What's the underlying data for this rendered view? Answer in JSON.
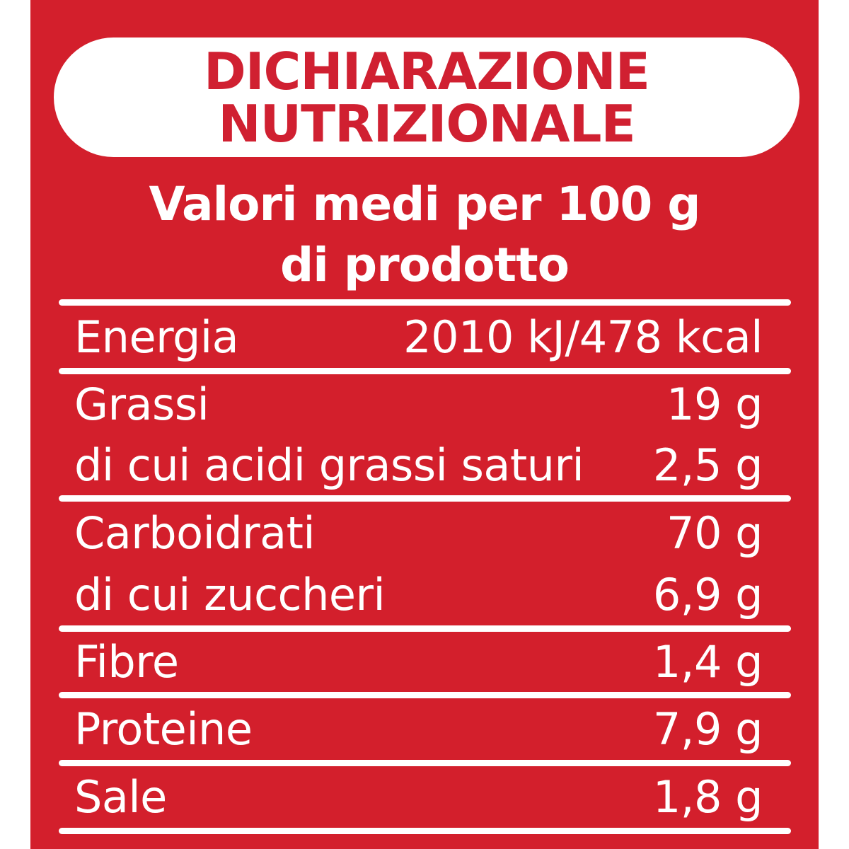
{
  "header": {
    "title_line1": "DICHIARAZIONE",
    "title_line2": "NUTRIZIONALE"
  },
  "subtitle": {
    "line1": "Valori medi per 100 g",
    "line2": "di prodotto"
  },
  "table": {
    "rows": [
      {
        "label": "Energia",
        "value": "2010 kJ/478 kcal"
      },
      {
        "label": "Grassi",
        "value": "19 g"
      },
      {
        "label": "di cui acidi grassi saturi",
        "value": "2,5 g"
      },
      {
        "label": "Carboidrati",
        "value": "70 g"
      },
      {
        "label": "di cui zuccheri",
        "value": "6,9 g"
      },
      {
        "label": "Fibre",
        "value": "1,4 g"
      },
      {
        "label": "Proteine",
        "value": "7,9 g"
      },
      {
        "label": "Sale",
        "value": "1,8 g"
      }
    ]
  },
  "colors": {
    "background_red": "#d31f2c",
    "title_red": "#d02031",
    "text_white": "#ffffff"
  }
}
